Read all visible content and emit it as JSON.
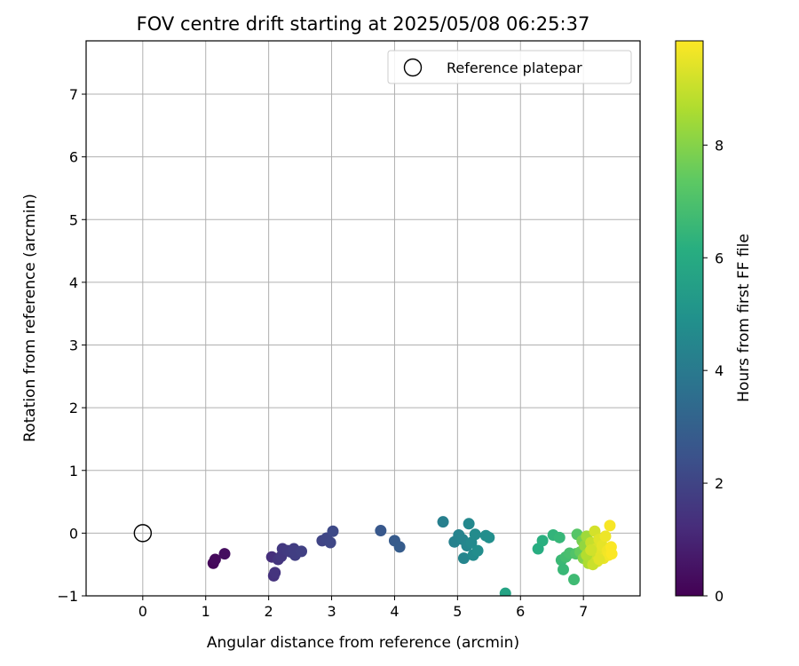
{
  "chart_data": {
    "type": "scatter",
    "title": "FOV centre drift starting at 2025/05/08 06:25:37",
    "xlabel": "Angular distance from reference (arcmin)",
    "ylabel": "Rotation from reference (arcmin)",
    "xlim": [
      -0.9,
      7.9
    ],
    "ylim": [
      -1.0,
      7.85
    ],
    "x_ticks": [
      0,
      1,
      2,
      3,
      4,
      5,
      6,
      7
    ],
    "y_ticks": [
      -1,
      0,
      1,
      2,
      3,
      4,
      5,
      6,
      7
    ],
    "grid": true,
    "legend": {
      "placement": "top-right",
      "entries": [
        "Reference platepar"
      ]
    },
    "reference_point": {
      "label": "Reference platepar",
      "x": 0,
      "y": 0,
      "marker": "open-circle"
    },
    "colorbar": {
      "label": "Hours from first FF file",
      "colormap": "viridis",
      "min": 0,
      "max": 9.85,
      "ticks": [
        0,
        2,
        4,
        6,
        8
      ]
    },
    "points": [
      {
        "x": 1.12,
        "y": -0.48,
        "t": 0.15
      },
      {
        "x": 1.15,
        "y": -0.42,
        "t": 0.25
      },
      {
        "x": 1.3,
        "y": -0.33,
        "t": 0.35
      },
      {
        "x": 2.05,
        "y": -0.38,
        "t": 1.3
      },
      {
        "x": 2.08,
        "y": -0.68,
        "t": 1.4
      },
      {
        "x": 2.1,
        "y": -0.63,
        "t": 1.45
      },
      {
        "x": 2.15,
        "y": -0.42,
        "t": 1.5
      },
      {
        "x": 2.2,
        "y": -0.37,
        "t": 1.55
      },
      {
        "x": 2.22,
        "y": -0.25,
        "t": 1.6
      },
      {
        "x": 2.3,
        "y": -0.28,
        "t": 1.65
      },
      {
        "x": 2.35,
        "y": -0.3,
        "t": 1.7
      },
      {
        "x": 2.4,
        "y": -0.25,
        "t": 1.75
      },
      {
        "x": 2.42,
        "y": -0.35,
        "t": 1.8
      },
      {
        "x": 2.52,
        "y": -0.29,
        "t": 1.85
      },
      {
        "x": 2.85,
        "y": -0.12,
        "t": 2.0
      },
      {
        "x": 2.92,
        "y": -0.08,
        "t": 2.05
      },
      {
        "x": 2.98,
        "y": -0.15,
        "t": 2.1
      },
      {
        "x": 3.02,
        "y": 0.03,
        "t": 2.15
      },
      {
        "x": 3.78,
        "y": 0.04,
        "t": 2.7
      },
      {
        "x": 4.0,
        "y": -0.12,
        "t": 2.8
      },
      {
        "x": 4.08,
        "y": -0.22,
        "t": 2.85
      },
      {
        "x": 4.77,
        "y": 0.18,
        "t": 4.2
      },
      {
        "x": 4.95,
        "y": -0.14,
        "t": 4.3
      },
      {
        "x": 5.02,
        "y": -0.03,
        "t": 4.35
      },
      {
        "x": 5.08,
        "y": -0.1,
        "t": 4.4
      },
      {
        "x": 5.1,
        "y": -0.4,
        "t": 4.45
      },
      {
        "x": 5.15,
        "y": -0.2,
        "t": 4.5
      },
      {
        "x": 5.18,
        "y": 0.15,
        "t": 4.55
      },
      {
        "x": 5.22,
        "y": -0.15,
        "t": 4.6
      },
      {
        "x": 5.25,
        "y": -0.35,
        "t": 4.65
      },
      {
        "x": 5.28,
        "y": -0.02,
        "t": 4.7
      },
      {
        "x": 5.32,
        "y": -0.28,
        "t": 4.75
      },
      {
        "x": 5.45,
        "y": -0.04,
        "t": 4.8
      },
      {
        "x": 5.5,
        "y": -0.07,
        "t": 4.85
      },
      {
        "x": 5.76,
        "y": -0.96,
        "t": 5.7
      },
      {
        "x": 6.28,
        "y": -0.25,
        "t": 6.1
      },
      {
        "x": 6.35,
        "y": -0.12,
        "t": 6.2
      },
      {
        "x": 6.52,
        "y": -0.03,
        "t": 6.4
      },
      {
        "x": 6.62,
        "y": -0.07,
        "t": 6.5
      },
      {
        "x": 6.65,
        "y": -0.43,
        "t": 6.6
      },
      {
        "x": 6.68,
        "y": -0.58,
        "t": 6.55
      },
      {
        "x": 6.72,
        "y": -0.38,
        "t": 6.8
      },
      {
        "x": 6.78,
        "y": -0.32,
        "t": 6.9
      },
      {
        "x": 6.85,
        "y": -0.74,
        "t": 6.7
      },
      {
        "x": 6.88,
        "y": -0.33,
        "t": 7.1
      },
      {
        "x": 6.9,
        "y": -0.02,
        "t": 7.2
      },
      {
        "x": 6.95,
        "y": -0.3,
        "t": 7.5
      },
      {
        "x": 6.98,
        "y": -0.12,
        "t": 7.8
      },
      {
        "x": 7.0,
        "y": -0.4,
        "t": 8.0
      },
      {
        "x": 7.02,
        "y": -0.2,
        "t": 8.2
      },
      {
        "x": 7.05,
        "y": -0.05,
        "t": 8.4
      },
      {
        "x": 7.08,
        "y": -0.48,
        "t": 8.6
      },
      {
        "x": 7.1,
        "y": -0.3,
        "t": 8.8
      },
      {
        "x": 7.12,
        "y": -0.15,
        "t": 9.0
      },
      {
        "x": 7.15,
        "y": -0.38,
        "t": 9.1
      },
      {
        "x": 7.18,
        "y": 0.03,
        "t": 9.2
      },
      {
        "x": 7.2,
        "y": -0.25,
        "t": 9.3
      },
      {
        "x": 7.22,
        "y": -0.45,
        "t": 9.35
      },
      {
        "x": 7.25,
        "y": -0.1,
        "t": 9.4
      },
      {
        "x": 7.28,
        "y": -0.32,
        "t": 9.45
      },
      {
        "x": 7.3,
        "y": -0.2,
        "t": 9.5
      },
      {
        "x": 7.32,
        "y": -0.4,
        "t": 9.55
      },
      {
        "x": 7.35,
        "y": -0.05,
        "t": 9.6
      },
      {
        "x": 7.38,
        "y": -0.28,
        "t": 9.65
      },
      {
        "x": 7.4,
        "y": -0.35,
        "t": 9.7
      },
      {
        "x": 7.42,
        "y": 0.12,
        "t": 9.75
      },
      {
        "x": 7.44,
        "y": -0.22,
        "t": 9.8
      },
      {
        "x": 7.45,
        "y": -0.33,
        "t": 9.82
      },
      {
        "x": 7.15,
        "y": -0.5,
        "t": 9.05
      },
      {
        "x": 7.05,
        "y": -0.35,
        "t": 8.7
      },
      {
        "x": 7.25,
        "y": -0.42,
        "t": 9.42
      },
      {
        "x": 7.12,
        "y": -0.27,
        "t": 9.15
      }
    ]
  }
}
